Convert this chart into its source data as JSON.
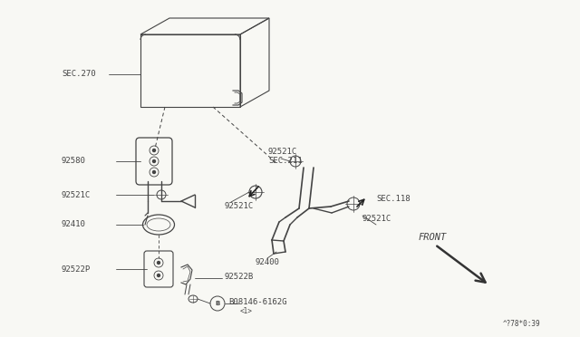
{
  "bg_color": "#f8f8f4",
  "line_color": "#444444",
  "text_color": "#444444",
  "labels": {
    "SEC270": "SEC.270",
    "n92580": "92580",
    "n92521C_top": "92521C",
    "SEC211": "SEC.211",
    "n92521C_left": "92521C",
    "n92521C_mid": "92521C",
    "n92410": "92410",
    "SEC118": "SEC.118",
    "n92521C_right": "92521C",
    "n92400": "92400",
    "n92522P": "92522P",
    "n92522B": "92522B",
    "bolt": "B08146-6162G",
    "bolt_num": "<1>",
    "FRONT": "FRONT",
    "bottom_code": "^?78*0:39"
  }
}
